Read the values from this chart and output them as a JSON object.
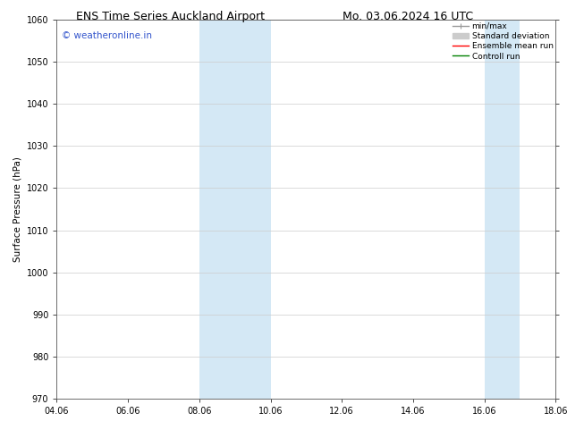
{
  "title_left": "ENS Time Series Auckland Airport",
  "title_right": "Mo. 03.06.2024 16 UTC",
  "ylabel": "Surface Pressure (hPa)",
  "ylim": [
    970,
    1060
  ],
  "yticks": [
    970,
    980,
    990,
    1000,
    1010,
    1020,
    1030,
    1040,
    1050,
    1060
  ],
  "xlim_start": 0,
  "xlim_end": 14,
  "xtick_labels": [
    "04.06",
    "06.06",
    "08.06",
    "10.06",
    "12.06",
    "14.06",
    "16.06",
    "18.06"
  ],
  "xtick_positions": [
    0,
    2,
    4,
    6,
    8,
    10,
    12,
    14
  ],
  "shaded_regions": [
    {
      "x_start": 4,
      "x_end": 6,
      "color": "#d4e8f5"
    },
    {
      "x_start": 12,
      "x_end": 13,
      "color": "#d4e8f5"
    }
  ],
  "watermark_text": "© weatheronline.in",
  "watermark_color": "#3355cc",
  "legend_items": [
    {
      "label": "min/max",
      "color": "#999999",
      "linewidth": 1.0
    },
    {
      "label": "Standard deviation",
      "color": "#cccccc",
      "linewidth": 5
    },
    {
      "label": "Ensemble mean run",
      "color": "red",
      "linewidth": 1.0
    },
    {
      "label": "Controll run",
      "color": "green",
      "linewidth": 1.0
    }
  ],
  "background_color": "#ffffff",
  "grid_color": "#cccccc",
  "title_fontsize": 9,
  "label_fontsize": 7.5,
  "tick_fontsize": 7,
  "legend_fontsize": 6.5,
  "watermark_fontsize": 7.5
}
